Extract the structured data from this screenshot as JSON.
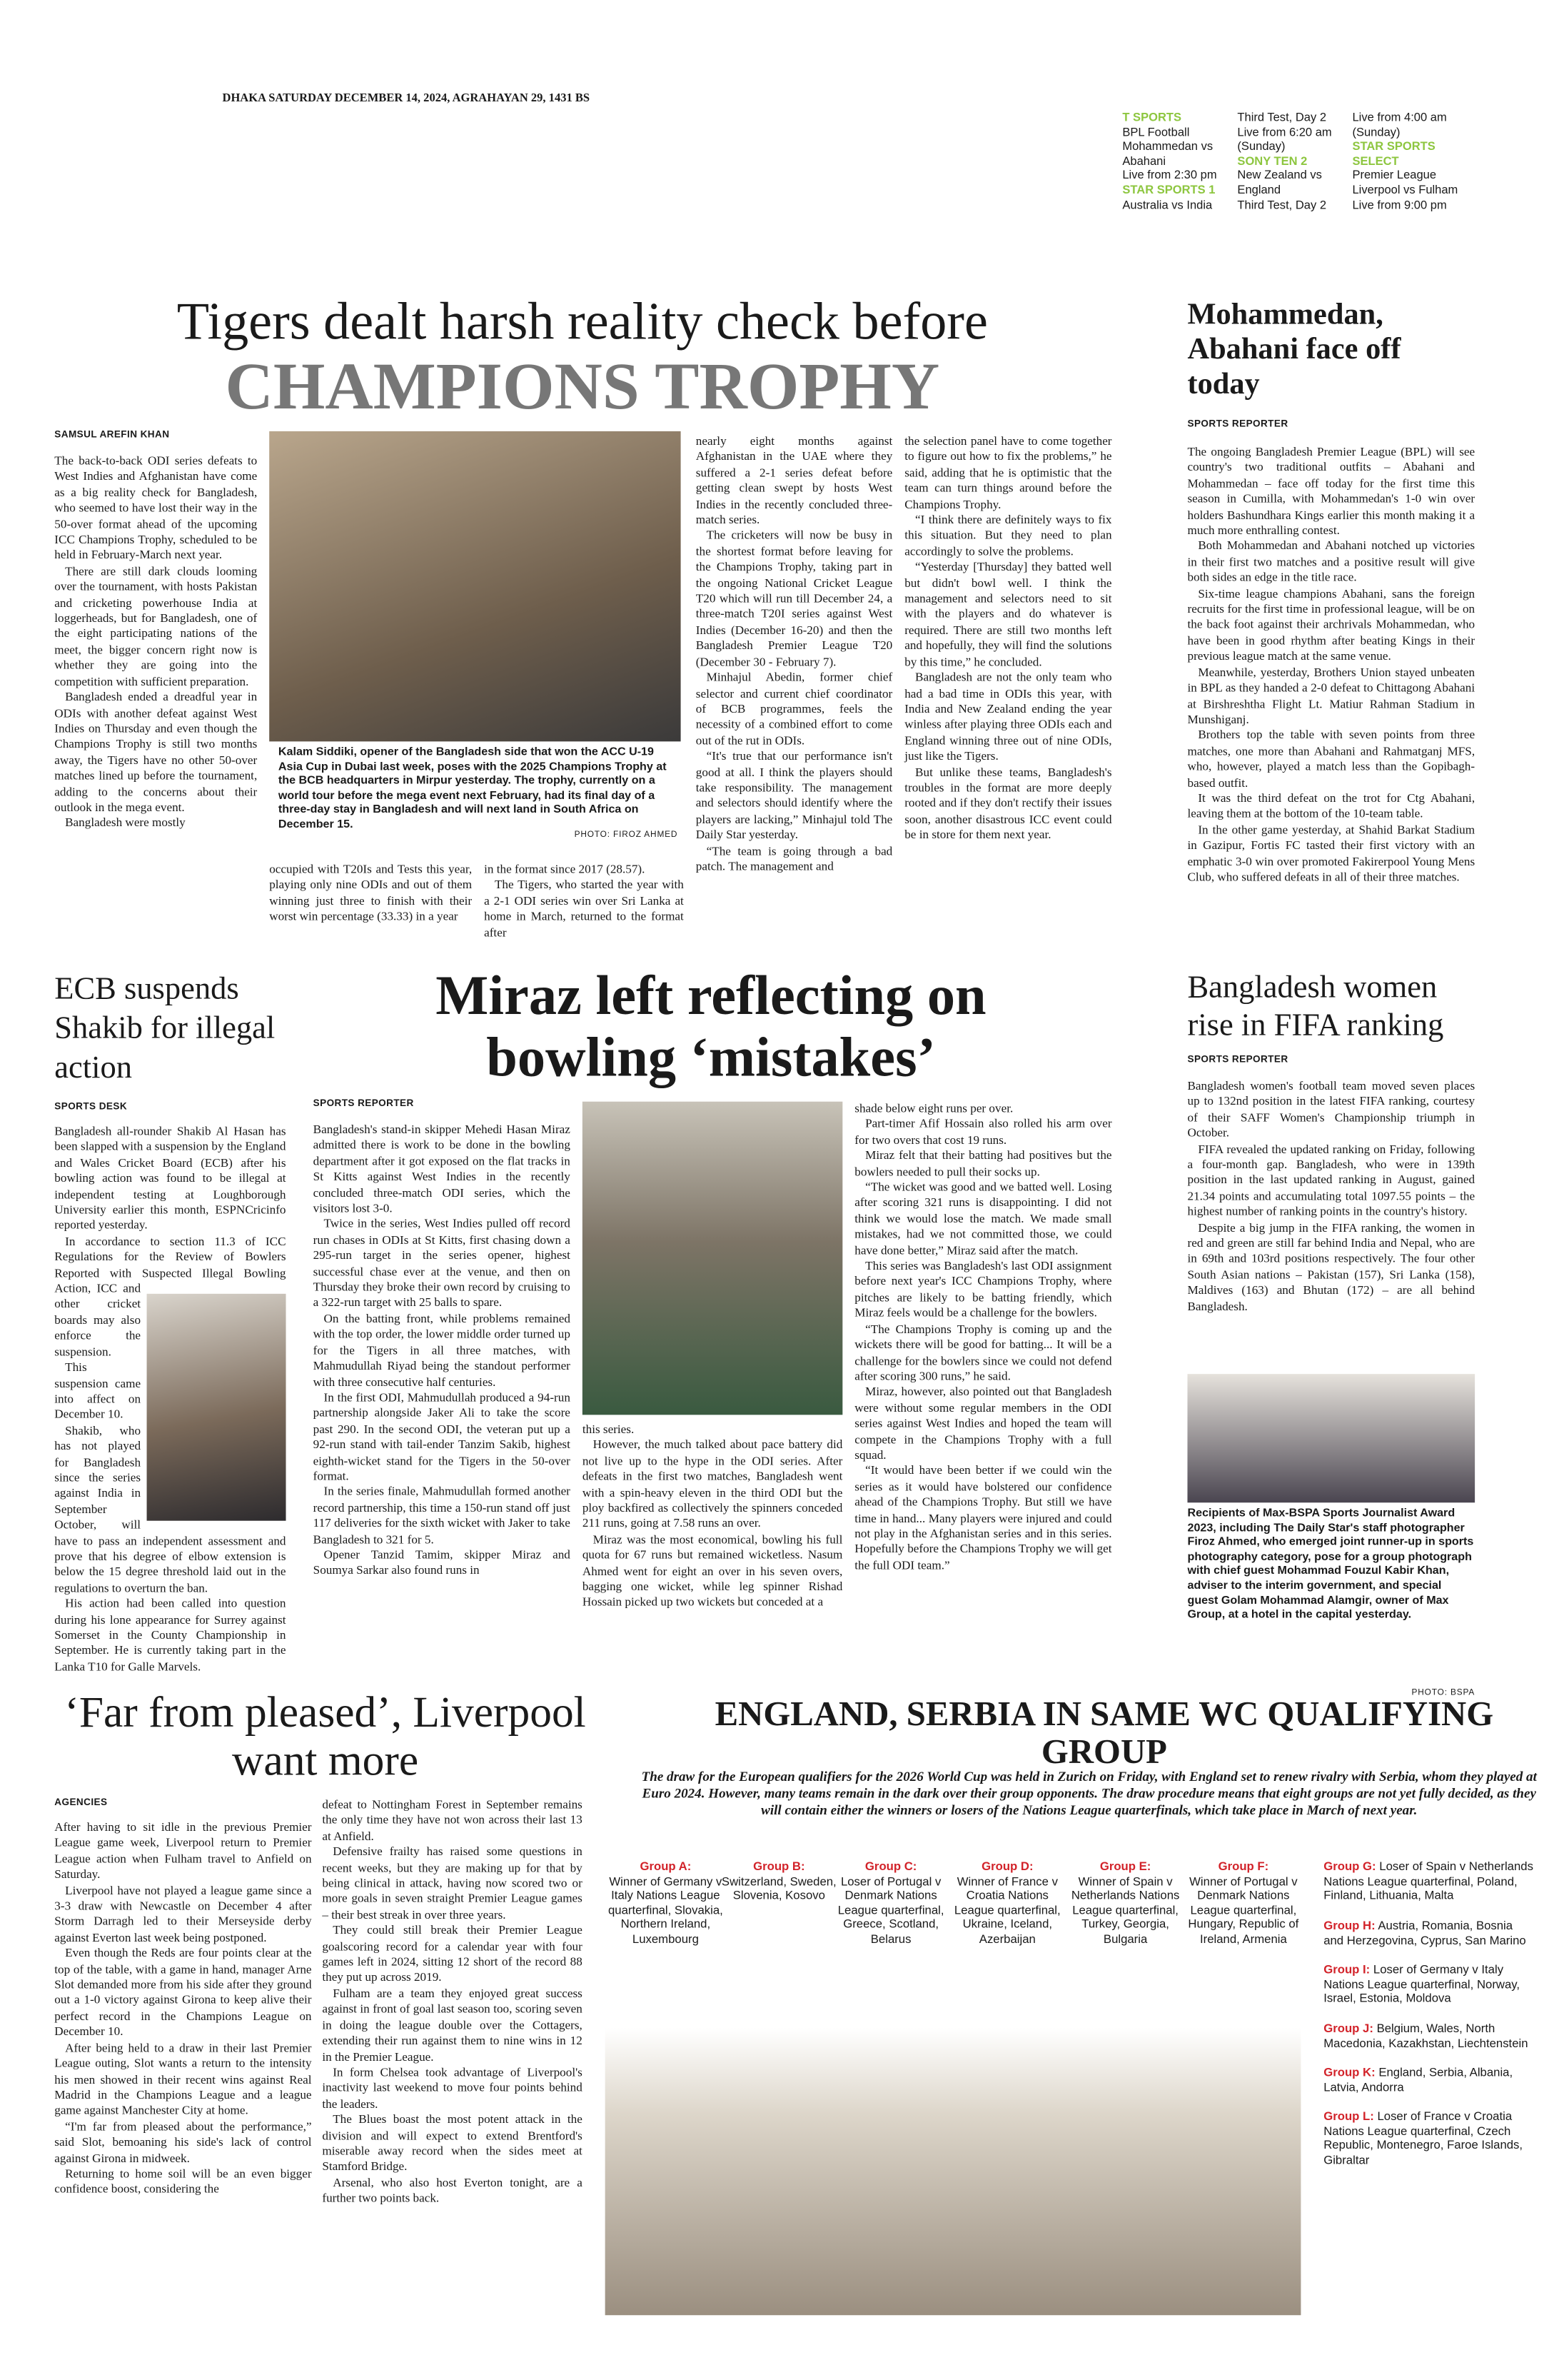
{
  "dateline": "DHAKA SATURDAY DECEMBER 14, 2024, AGRAHAYAN 29, 1431 BS",
  "tv_listings": [
    {
      "channel": "T SPORTS",
      "lines": [
        "BPL Football",
        "Mohammedan vs Abahani",
        "Live from 2:30 pm"
      ]
    },
    {
      "channel": "STAR SPORTS 1",
      "lines": [
        "Australia vs India",
        "Third Test, Day 2",
        "Live from 6:20 am (Sunday)"
      ]
    },
    {
      "channel": "SONY TEN 2",
      "lines": [
        "New Zealand vs England",
        "Third Test, Day 2",
        "Live from 4:00 am (Sunday)"
      ]
    },
    {
      "channel": "STAR SPORTS SELECT",
      "lines": [
        "Premier League",
        "Liverpool vs Fulham",
        "Live from 9:00 pm"
      ]
    }
  ],
  "lead": {
    "headline_top": "Tigers dealt harsh reality check before",
    "headline_main": "CHAMPIONS TROPHY",
    "byline": "SAMSUL AREFIN KHAN",
    "columns": [
      [
        "The back-to-back ODI series defeats to West Indies and Afghanistan have come as a big reality check for Bangladesh, who seemed to have lost their way in the 50-over format ahead of the upcoming ICC Champions Trophy, scheduled to be held in February-March next year.",
        "There are still dark clouds looming over the tournament, with hosts Pakistan and cricketing powerhouse India at loggerheads, but for Bangladesh, one of the eight participating nations of the meet, the bigger concern right now is whether they are going into the competition with sufficient preparation.",
        "Bangladesh ended a dreadful year in ODIs with another defeat against West Indies on Thursday and even though the Champions Trophy is still two months away, the Tigers have no other 50-over matches lined up before the tournament, adding to the concerns about their outlook in the mega event.",
        "Bangladesh were mostly"
      ],
      [
        "occupied with T20Is and Tests this year, playing only nine ODIs and out of them winning just three to finish with their worst win percentage (33.33) in a year"
      ],
      [
        "in the format since 2017 (28.57).",
        "The Tigers, who started the year with a 2-1 ODI series win over Sri Lanka at home in March, returned to the format after"
      ],
      [
        "nearly eight months against Afghanistan in the UAE where they suffered a 2-1 series defeat before getting clean swept by hosts West Indies in the recently concluded three-match series.",
        "The cricketers will now be busy in the shortest format before leaving for the Champions Trophy, taking part in the ongoing National Cricket League T20 which will run till December 24, a three-match T20I series against West Indies (December 16-20) and then the Bangladesh Premier League T20 (December 30 - February 7).",
        "Minhajul Abedin, former chief selector and current chief coordinator of BCB programmes, feels the necessity of a combined effort to come out of the rut in ODIs.",
        "“It's true that our performance isn't good at all. I think the players should take responsibility. The management and selectors should identify where the players are lacking,” Minhajul told The Daily Star yesterday.",
        "“The team is going through a bad patch. The management and"
      ],
      [
        "the selection panel have to come together to figure out how to fix the problems,” he said, adding that he is optimistic that the team can turn things around before the Champions Trophy.",
        "“I think there are definitely ways to fix this situation. But they need to plan accordingly to solve the problems.",
        "“Yesterday [Thursday] they batted well but didn't bowl well. I think the management and selectors need to sit with the players and do whatever is required. There are still two months left and hopefully, they will find the solutions by this time,” he concluded.",
        "Bangladesh are not the only team who had a bad time in ODIs this year, with India and New Zealand ending the year winless after playing three ODIs each and England winning three out of nine ODIs, just like the Tigers.",
        "But unlike these teams, Bangladesh's troubles in the format are more deeply rooted and if they don't rectify their issues soon, another disastrous ICC event could be in store for them next year."
      ]
    ],
    "photo_caption": "Kalam Siddiki, opener of the Bangladesh side that won the ACC U-19 Asia Cup in Dubai last week, poses with the 2025 Champions Trophy at the BCB headquarters in Mirpur yesterday. The trophy, currently on a world tour before the mega event next February, had its final day of a three-day stay in Bangladesh and will next land in South Africa on December 15.",
    "photo_credit": "PHOTO: FIROZ AHMED"
  },
  "mohammedan": {
    "headline": "Mohammedan, Abahani face off today",
    "byline": "SPORTS REPORTER",
    "columns": [
      [
        "The ongoing Bangladesh Premier League (BPL) will see country's two traditional outfits – Abahani and Mohammedan – face off today for the first time this season in Cumilla, with Mohammedan's 1-0 win over holders Bashundhara Kings earlier this month making it a much more enthralling contest.",
        "Both Mohammedan and Abahani notched up victories in their first two matches and a positive result will give both sides an edge in the title race.",
        "Six-time league champions Abahani, sans the foreign recruits for the first time in professional league, will be on the back foot against their archrivals Mohammedan, who have been in good rhythm after beating Kings in their previous league match at the same venue.",
        "Meanwhile, yesterday, Brothers Union stayed unbeaten in BPL as they handed a 2-0 defeat to Chittagong Abahani at Birshreshtha Flight Lt. Matiur Rahman Stadium in Munshiganj.",
        "Brothers top the table with seven points from three matches, one more than Abahani and Rahmatganj MFS, who, however, played a match less than the Gopibagh-based outfit.",
        "It was the third defeat on the trot for Ctg Abahani, leaving them at the bottom of the 10-team table.",
        "In the other game yesterday, at Shahid Barkat Stadium in Gazipur, Fortis FC tasted their first victory with an emphatic 3-0 win over promoted Fakirerpool Young Mens Club, who suffered defeats in all of their three matches."
      ]
    ]
  },
  "ecb": {
    "headline": "ECB suspends Shakib for illegal action",
    "byline": "SPORTS DESK",
    "columns": [
      [
        "Bangladesh all-rounder Shakib Al Hasan has been slapped with a suspension by the England and Wales Cricket Board (ECB) after his bowling action was found to be illegal at independent testing at Loughborough University earlier this month, ESPNCricinfo reported yesterday.",
        "In accordance to section 11.3 of ICC Regulations for the Review of Bowlers Reported with Suspected Illegal Bowling Action, ICC and other cricket boards may also enforce the suspension.",
        "This suspension came into affect on December 10.",
        "Shakib, who has not played for Bangladesh since the series against India in September October, will have to pass an independent assessment and prove that his degree of elbow extension is below the 15 degree threshold laid out in the regulations to overturn the ban.",
        "His action had been called into question during his lone appearance for Surrey against Somerset in the County Championship in September. He is currently taking part in the Lanka T10 for Galle Marvels."
      ]
    ]
  },
  "miraz": {
    "headline": "Miraz left reflecting on bowling ‘mistakes’",
    "byline": "SPORTS REPORTER",
    "columns": [
      [
        "Bangladesh's stand-in skipper Mehedi Hasan Miraz admitted there is work to be done in the bowling department after it got exposed on the flat tracks in St Kitts against West Indies in the recently concluded three-match ODI series, which the visitors lost 3-0.",
        "Twice in the series, West Indies pulled off record run chases in ODIs at St Kitts, first chasing down a 295-run target in the series opener, highest successful chase ever at the venue, and then on Thursday they broke their own record by cruising to a 322-run target with 25 balls to spare.",
        "On the batting front, while problems remained with the top order, the lower middle order turned up for the Tigers in all three matches, with Mahmudullah Riyad being the standout performer with three consecutive half centuries.",
        "In the first ODI, Mahmudullah produced a 94-run partnership alongside Jaker Ali to take the score past 290. In the second ODI, the veteran put up a 92-run stand with tail-ender Tanzim Sakib, highest eighth-wicket stand for the Tigers in the 50-over format.",
        "In the series finale, Mahmudullah formed another record partnership, this time a 150-run stand off just 117 deliveries for the sixth wicket with Jaker to take Bangladesh to 321 for 5.",
        "Opener Tanzid Tamim, skipper Miraz and Soumya Sarkar also found runs in"
      ],
      [
        "this series.",
        "However, the much talked about pace battery did not live up to the hype in the ODI series. After defeats in the first two matches, Bangladesh went with a spin-heavy eleven in the third ODI but the ploy backfired as collectively the spinners conceded 211 runs, going at 7.58 runs an over.",
        "Miraz was the most economical, bowling his full quota for 67 runs but remained wicketless. Nasum Ahmed went for eight an over in his seven overs, bagging one wicket, while leg spinner Rishad Hossain picked up two wickets but conceded at a"
      ],
      [
        "shade below eight runs per over.",
        "Part-timer Afif Hossain also rolled his arm over for two overs that cost 19 runs.",
        "Miraz felt that their batting had positives but the bowlers needed to pull their socks up.",
        "“The wicket was good and we batted well. Losing after scoring 321 runs is disappointing. I did not think we would lose the match. We made small mistakes, had we not committed those, we could have done better,” Miraz said after the match.",
        "This series was Bangladesh's last ODI assignment before next year's ICC Champions Trophy, where pitches are likely to be batting friendly, which Miraz feels would be a challenge for the bowlers.",
        "“The Champions Trophy is coming up and the wickets there will be good for batting... It will be a challenge for the bowlers since we could not defend after scoring 300 runs,” he said.",
        "Miraz, however, also pointed out that Bangladesh were without some regular members in the ODI series against West Indies and hoped the team will compete in the Champions Trophy with a full squad.",
        "“It would have been better if we could win the series as it would have bolstered our confidence ahead of the Champions Trophy. But still we have time in hand... Many players were injured and could not play in the Afghanistan series and in this series. Hopefully before the Champions Trophy we will get the full ODI team.”"
      ]
    ]
  },
  "fifa": {
    "headline": "Bangladesh women rise in FIFA ranking",
    "byline": "SPORTS REPORTER",
    "columns": [
      [
        "Bangladesh women's football team moved seven places up to 132nd position in the latest FIFA ranking, courtesy of their SAFF Women's Championship triumph in October.",
        "FIFA revealed the updated ranking on Friday, following a four-month gap. Bangladesh, who were in 139th position in the last updated ranking in August, gained 21.34 points and accumulating total 1097.55 points – the highest number of ranking points in the country's history.",
        "Despite a big jump in the FIFA ranking, the women in red and green are still far behind India and Nepal, who are in 69th and 103rd positions respectively. The four other South Asian nations – Pakistan (157), Sri Lanka (158), Maldives (163) and Bhutan (172) – are all behind Bangladesh."
      ]
    ],
    "photo_caption": "Recipients of Max-BSPA Sports Journalist Award 2023, including The Daily Star's staff photographer Firoz Ahmed, who emerged joint runner-up in sports photography category, pose for a group photograph with chief guest Mohammad Fouzul Kabir Khan, adviser to the interim government, and special guest Golam Mohammad Alamgir, owner of Max Group, at a hotel in the capital yesterday.",
    "photo_credit": "PHOTO: BSPA"
  },
  "liverpool": {
    "headline": "‘Far from pleased’, Liverpool want more",
    "byline": "AGENCIES",
    "columns": [
      [
        "After having to sit idle in the previous Premier League game week, Liverpool return to Premier League action when Fulham travel to Anfield on Saturday.",
        "Liverpool have not played a league game since a 3-3 draw with Newcastle on December 4 after Storm Darragh led to their Merseyside derby against Everton last week being postponed.",
        "Even though the Reds are four points clear at the top of the table, with a game in hand, manager Arne Slot demanded more from his side after they ground out a 1-0 victory against Girona to keep alive their perfect record in the Champions League on December 10.",
        "After being held to a draw in their last Premier League outing, Slot wants a return to the intensity his men showed in their recent wins against Real Madrid in the Champions League and a league game against Manchester City at home.",
        "“I'm far from pleased about the performance,” said Slot, bemoaning his side's lack of control against Girona in midweek.",
        "Returning to home soil will be an even bigger confidence boost, considering the"
      ],
      [
        "defeat to Nottingham Forest in September remains the only time they have not won across their last 13 at Anfield.",
        "Defensive frailty has raised some questions in recent weeks, but they are making up for that by being clinical in attack, having now scored two or more goals in seven straight Premier League games – their best streak in over three years.",
        "They could still break their Premier League goalscoring record for a calendar year with four games left in 2024, sitting 12 short of the record 88 they put up across 2019.",
        "Fulham are a team they enjoyed great success against in front of goal last season too, scoring seven in doing the league double over the Cottagers, extending their run against them to nine wins in 12 in the Premier League.",
        "In form Chelsea took advantage of Liverpool's inactivity last weekend to move four points behind the leaders.",
        "The Blues boast the most potent attack in the division and will expect to extend Brentford's miserable away record when the sides meet at Stamford Bridge.",
        "Arsenal, who also host Everton tonight, are a further two points back."
      ]
    ]
  },
  "wc_draw": {
    "headline": "ENGLAND, SERBIA IN SAME WC QUALIFYING GROUP",
    "intro": "The draw for the European qualifiers for the 2026 World Cup was held in Zurich on Friday, with England set to renew rivalry with Serbia, whom they played at Euro 2024. However, many teams remain in the dark over their group opponents. The draw procedure means that eight groups are not yet fully decided, as they will contain either the winners or losers of the Nations League quarterfinals, which take place in March of next year.",
    "groups": [
      {
        "label": "Group A:",
        "teams": "Winner of Germany v Italy Nations League quarterfinal, Slovakia, Northern Ireland, Luxembourg"
      },
      {
        "label": "Group B:",
        "teams": "Switzerland, Sweden, Slovenia, Kosovo"
      },
      {
        "label": "Group C:",
        "teams": "Loser of Portugal v Denmark Nations League quarterfinal, Greece, Scotland, Belarus"
      },
      {
        "label": "Group D:",
        "teams": "Winner of France v Croatia Nations League quarterfinal, Ukraine, Iceland, Azerbaijan"
      },
      {
        "label": "Group E:",
        "teams": "Winner of Spain v Netherlands Nations League quarterfinal, Turkey, Georgia, Bulgaria"
      },
      {
        "label": "Group F:",
        "teams": "Winner of Portugal v Denmark Nations League quarterfinal, Hungary, Republic of Ireland, Armenia"
      },
      {
        "label": "Group G:",
        "teams": "Loser of Spain v Netherlands Nations League quarterfinal, Poland, Finland, Lithuania, Malta"
      },
      {
        "label": "Group H:",
        "teams": "Austria, Romania, Bosnia and Herzegovina, Cyprus, San Marino"
      },
      {
        "label": "Group I:",
        "teams": "Loser of Germany v Italy Nations League quarterfinal, Norway, Israel, Estonia, Moldova"
      },
      {
        "label": "Group J:",
        "teams": "Belgium, Wales, North Macedonia, Kazakhstan, Liechtenstein"
      },
      {
        "label": "Group K:",
        "teams": "England, Serbia, Albania, Latvia, Andorra"
      },
      {
        "label": "Group L:",
        "teams": "Loser of France v Croatia Nations League quarterfinal, Czech Republic, Montenegro, Faroe Islands, Gibraltar"
      }
    ]
  }
}
